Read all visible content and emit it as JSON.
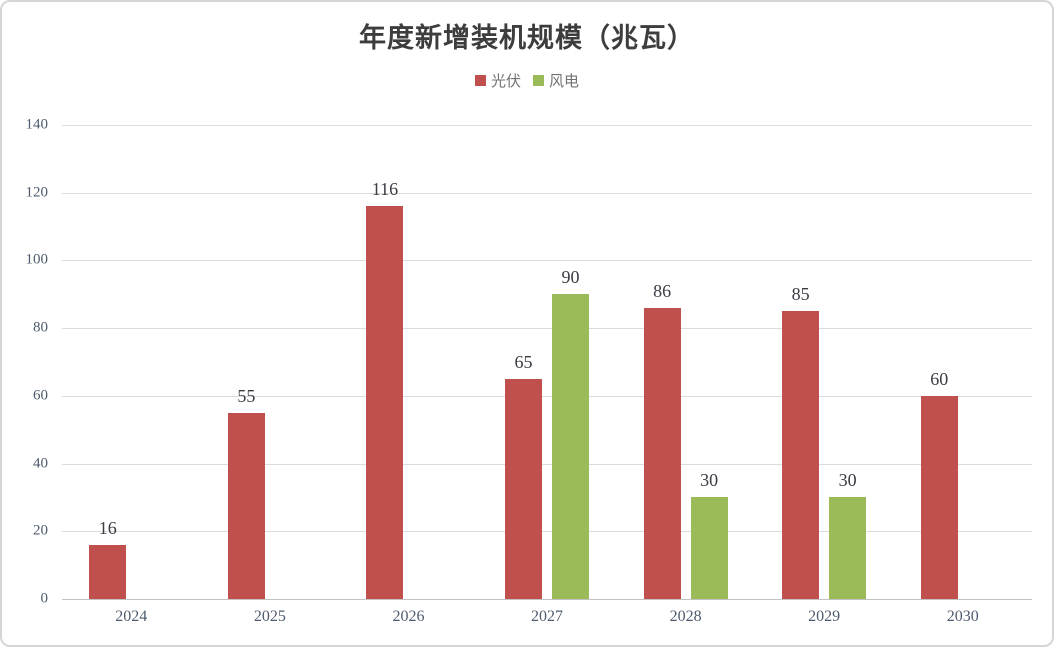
{
  "page": {
    "background": "#ffffff",
    "border_color": "#d5d5d5"
  },
  "chart_data": {
    "type": "bar",
    "title": "年度新增装机规模（兆瓦）",
    "categories": [
      "2024",
      "2025",
      "2026",
      "2027",
      "2028",
      "2029",
      "2030"
    ],
    "series": [
      {
        "name": "光伏",
        "color": "#C0504D",
        "values": [
          16,
          55,
          116,
          65,
          86,
          85,
          60
        ]
      },
      {
        "name": "风电",
        "color": "#9BBB59",
        "values": [
          null,
          null,
          null,
          90,
          30,
          30,
          null
        ]
      }
    ],
    "xlabel": "",
    "ylabel": "",
    "ylim": [
      0,
      140
    ],
    "yticks": [
      0,
      20,
      40,
      60,
      80,
      100,
      120,
      140
    ],
    "grid": true,
    "gridline_color": "#dcdcdc",
    "axis_line_color": "#c2c2c2",
    "legend_position": "top",
    "data_labels": true,
    "data_label_color": "#3b3b44",
    "tick_label_color": "#4e5c6e"
  }
}
